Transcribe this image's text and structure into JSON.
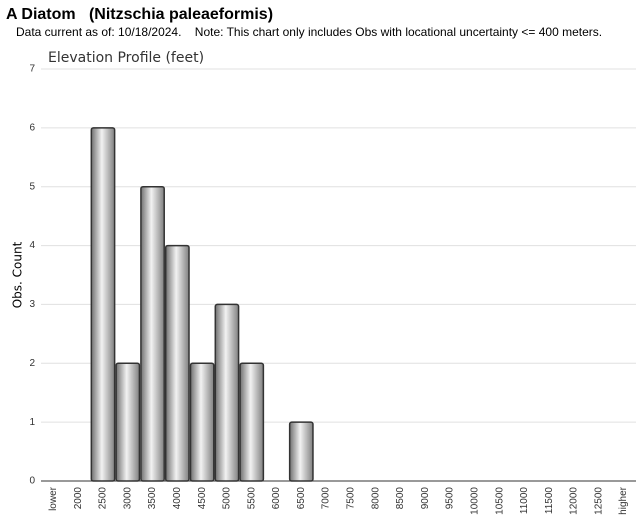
{
  "chart_data": {
    "type": "bar",
    "title": "A Diatom   (Nitzschia paleaeformis)",
    "subtitle": "Data current as of: 10/18/2024.    Note: This chart only includes Obs with locational uncertainty <= 400 meters.",
    "chart_title": "Elevation Profile (feet)",
    "y_label": "Obs. Count",
    "categories": [
      "lower",
      "2000",
      "2500",
      "3000",
      "3500",
      "4000",
      "4500",
      "5000",
      "5500",
      "6000",
      "6500",
      "7000",
      "7500",
      "8000",
      "8500",
      "9000",
      "9500",
      "10000",
      "10500",
      "11000",
      "11500",
      "12000",
      "12500",
      "higher"
    ],
    "values": [
      0,
      0,
      6,
      2,
      5,
      4,
      2,
      3,
      2,
      0,
      1,
      0,
      0,
      0,
      0,
      0,
      0,
      0,
      0,
      0,
      0,
      0,
      0,
      0
    ],
    "color": "#a0a0a0",
    "ylim": [
      0,
      7
    ],
    "yticks": [
      0,
      1,
      2,
      3,
      4,
      5,
      6,
      7
    ],
    "grid": true
  }
}
